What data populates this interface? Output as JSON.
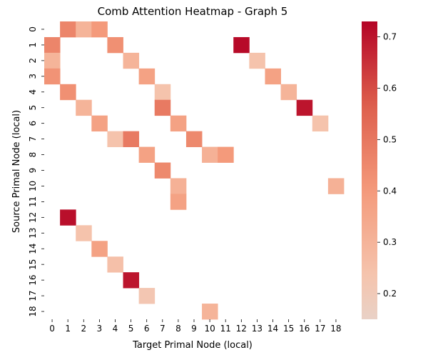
{
  "chart_data": {
    "type": "heatmap",
    "title": "Comb Attention Heatmap - Graph 5",
    "xlabel": "Target Primal Node (local)",
    "ylabel": "Source Primal Node (local)",
    "x_categories": [
      "0",
      "1",
      "2",
      "3",
      "4",
      "5",
      "6",
      "7",
      "8",
      "9",
      "10",
      "11",
      "12",
      "13",
      "14",
      "15",
      "16",
      "17",
      "18"
    ],
    "y_categories": [
      "0",
      "1",
      "2",
      "3",
      "4",
      "5",
      "6",
      "7",
      "8",
      "9",
      "10",
      "11",
      "12",
      "13",
      "14",
      "15",
      "16",
      "17",
      "18"
    ],
    "colormap": "coolwarm",
    "colorbar": {
      "vmin": 0.15,
      "vmax": 0.73,
      "ticks": [
        0.2,
        0.3,
        0.4,
        0.5,
        0.6,
        0.7
      ],
      "tick_labels": [
        "0.2",
        "0.3",
        "0.4",
        "0.5",
        "0.6",
        "0.7"
      ]
    },
    "cells": [
      {
        "row": 0,
        "col": 1,
        "value": 0.46
      },
      {
        "row": 0,
        "col": 2,
        "value": 0.3
      },
      {
        "row": 0,
        "col": 3,
        "value": 0.4
      },
      {
        "row": 1,
        "col": 0,
        "value": 0.46
      },
      {
        "row": 1,
        "col": 4,
        "value": 0.43
      },
      {
        "row": 1,
        "col": 12,
        "value": 0.72
      },
      {
        "row": 2,
        "col": 0,
        "value": 0.3
      },
      {
        "row": 2,
        "col": 5,
        "value": 0.3
      },
      {
        "row": 2,
        "col": 13,
        "value": 0.24
      },
      {
        "row": 3,
        "col": 0,
        "value": 0.42
      },
      {
        "row": 3,
        "col": 6,
        "value": 0.37
      },
      {
        "row": 3,
        "col": 14,
        "value": 0.37
      },
      {
        "row": 4,
        "col": 1,
        "value": 0.43
      },
      {
        "row": 4,
        "col": 7,
        "value": 0.24
      },
      {
        "row": 4,
        "col": 15,
        "value": 0.3
      },
      {
        "row": 5,
        "col": 2,
        "value": 0.3
      },
      {
        "row": 5,
        "col": 7,
        "value": 0.49
      },
      {
        "row": 5,
        "col": 16,
        "value": 0.7
      },
      {
        "row": 6,
        "col": 3,
        "value": 0.37
      },
      {
        "row": 6,
        "col": 8,
        "value": 0.37
      },
      {
        "row": 6,
        "col": 17,
        "value": 0.24
      },
      {
        "row": 7,
        "col": 4,
        "value": 0.24
      },
      {
        "row": 7,
        "col": 5,
        "value": 0.49
      },
      {
        "row": 7,
        "col": 9,
        "value": 0.45
      },
      {
        "row": 8,
        "col": 6,
        "value": 0.37
      },
      {
        "row": 8,
        "col": 10,
        "value": 0.31
      },
      {
        "row": 8,
        "col": 11,
        "value": 0.4
      },
      {
        "row": 9,
        "col": 7,
        "value": 0.45
      },
      {
        "row": 10,
        "col": 8,
        "value": 0.31
      },
      {
        "row": 10,
        "col": 18,
        "value": 0.31
      },
      {
        "row": 11,
        "col": 8,
        "value": 0.37
      },
      {
        "row": 12,
        "col": 1,
        "value": 0.71
      },
      {
        "row": 13,
        "col": 2,
        "value": 0.24
      },
      {
        "row": 14,
        "col": 3,
        "value": 0.37
      },
      {
        "row": 15,
        "col": 4,
        "value": 0.25
      },
      {
        "row": 16,
        "col": 5,
        "value": 0.7
      },
      {
        "row": 17,
        "col": 6,
        "value": 0.22
      },
      {
        "row": 18,
        "col": 10,
        "value": 0.3
      }
    ]
  }
}
